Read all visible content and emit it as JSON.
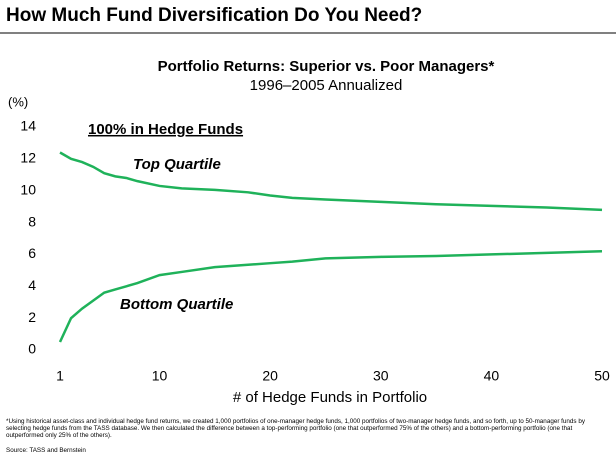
{
  "header": {
    "title": "How Much Fund Diversification Do You Need?"
  },
  "chart_data": {
    "type": "line",
    "title": "Portfolio Returns: Superior vs. Poor Managers*",
    "subtitle": "1996–2005 Annualized",
    "annotation": "100% in Hedge Funds",
    "annotation_color": "#c9a227",
    "y_label": "(%)",
    "x_label": "# of Hedge Funds in Portfolio",
    "x": [
      1,
      2,
      3,
      4,
      5,
      6,
      7,
      8,
      10,
      12,
      15,
      18,
      20,
      22,
      25,
      30,
      35,
      40,
      45,
      50
    ],
    "series": [
      {
        "name": "Top Quartile",
        "color": "#1fb25a",
        "values": [
          12.4,
          12.0,
          11.8,
          11.5,
          11.1,
          10.9,
          10.8,
          10.6,
          10.3,
          10.15,
          10.05,
          9.9,
          9.7,
          9.55,
          9.45,
          9.3,
          9.15,
          9.05,
          8.95,
          8.8
        ]
      },
      {
        "name": "Bottom Quartile",
        "color": "#1fb25a",
        "values": [
          0.5,
          2.0,
          2.6,
          3.1,
          3.6,
          3.8,
          4.0,
          4.2,
          4.7,
          4.9,
          5.2,
          5.35,
          5.45,
          5.55,
          5.75,
          5.85,
          5.9,
          6.0,
          6.1,
          6.2
        ]
      }
    ],
    "xlim": [
      1,
      50
    ],
    "xticks": [
      1,
      10,
      20,
      30,
      40,
      50
    ],
    "ylim": [
      0,
      14
    ],
    "yticks": [
      0,
      2,
      4,
      6,
      8,
      10,
      12,
      14
    ],
    "grid": false
  },
  "footnote": "*Using historical asset-class and individual hedge fund returns, we created 1,000 portfolios of one-manager hedge funds, 1,000 portfolios of two-manager hedge funds, and so forth, up to 50-manager funds by selecting hedge funds from the TASS database. We then calculated the difference between a top-performing portfolio (one that outperformed 75% of the others) and a bottom-performing portfolio (one that outperformed only 25% of the others).",
  "source": "Source: TASS and Bernstein"
}
